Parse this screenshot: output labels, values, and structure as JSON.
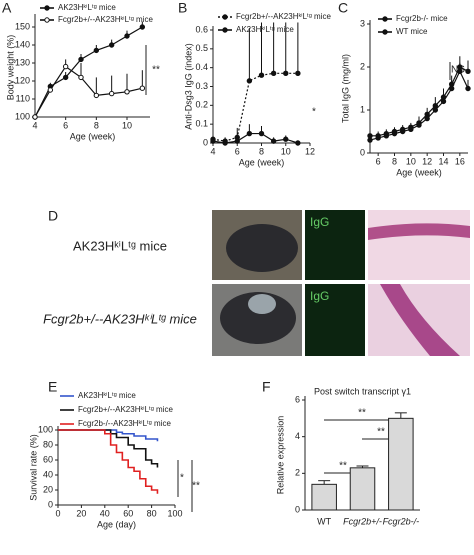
{
  "panel_labels": [
    "A",
    "B",
    "C",
    "D",
    "E",
    "F"
  ],
  "figure_d": {
    "rows": [
      "AK23HᵏⁱLᵗᵍ mice",
      "Fcgr2b+/--AK23HᵏⁱLᵗᵍ mice"
    ],
    "stain": "IgG"
  },
  "chart_data": [
    {
      "type": "line",
      "x": [
        4,
        5,
        6,
        7,
        8,
        9,
        10,
        11
      ],
      "xlim": [
        4,
        11.5
      ],
      "xticks": [
        4,
        6,
        8,
        10
      ],
      "ylim": [
        100,
        155
      ],
      "yticks": [
        100,
        110,
        120,
        130,
        140,
        150
      ],
      "xlabel": "Age (week)",
      "ylabel": "Body weight (%)",
      "annotations": [
        "**"
      ],
      "series": [
        {
          "name": "AK23HᵏⁱLᵗᵍ mice",
          "color": "#111",
          "marker": "filled",
          "dash": false,
          "values": [
            100,
            117,
            122,
            132,
            137,
            140,
            145,
            150
          ],
          "errors": [
            1,
            2,
            3,
            3,
            3,
            3,
            3,
            3
          ]
        },
        {
          "name": "Fcgr2b+/--AK23HᵏⁱLᵗᵍ mice",
          "color": "#111",
          "marker": "open",
          "dash": false,
          "values": [
            100,
            115,
            128,
            122,
            112,
            113,
            114,
            116
          ],
          "errors": [
            1,
            2,
            4,
            8,
            10,
            10,
            10,
            10
          ]
        }
      ]
    },
    {
      "type": "line",
      "x": [
        4,
        5,
        6,
        7,
        8,
        9,
        10,
        11
      ],
      "xlim": [
        4,
        12
      ],
      "xticks": [
        4,
        6,
        8,
        10,
        12
      ],
      "ylim": [
        0,
        0.6
      ],
      "yticks": [
        0,
        0.1,
        0.2,
        0.3,
        0.4,
        0.5,
        0.6
      ],
      "xlabel": "Age (week)",
      "ylabel": "Anti-Dsg3 IgG (index)",
      "annotations": [
        "*"
      ],
      "series": [
        {
          "name": "Fcgr2b+/--AK23HᵏⁱLᵗᵍ mice",
          "color": "#111",
          "marker": "filled",
          "dash": true,
          "values": [
            0.02,
            0.01,
            0.03,
            0.33,
            0.36,
            0.37,
            0.37,
            0.37
          ],
          "errors": [
            0.02,
            0.02,
            0.05,
            0.28,
            0.28,
            0.27,
            0.27,
            0.27
          ]
        },
        {
          "name": "AK23HᵏⁱLᵗᵍ mice",
          "color": "#111",
          "marker": "filled",
          "dash": false,
          "values": [
            0.01,
            0,
            0.01,
            0.05,
            0.05,
            0.01,
            0.02,
            0
          ],
          "errors": [
            0.01,
            0.01,
            0.02,
            0.05,
            0.04,
            0.02,
            0.02,
            0.01
          ]
        }
      ]
    },
    {
      "type": "line",
      "x": [
        5,
        6,
        7,
        8,
        9,
        10,
        11,
        12,
        13,
        14,
        15,
        16,
        17
      ],
      "xlim": [
        5,
        17
      ],
      "xticks": [
        6,
        8,
        10,
        12,
        14,
        16
      ],
      "ylim": [
        0,
        3
      ],
      "yticks": [
        0,
        1,
        2,
        3
      ],
      "xlabel": "Age (week)",
      "ylabel": "Total IgG (mg/ml)",
      "annotations": [
        "NS"
      ],
      "series": [
        {
          "name": "Fcgr2b-/- mice",
          "color": "#111",
          "marker": "filled",
          "dash": false,
          "values": [
            0.4,
            0.4,
            0.45,
            0.5,
            0.55,
            0.6,
            0.7,
            0.9,
            1.1,
            1.3,
            1.6,
            2.0,
            1.9
          ],
          "errors": [
            0.1,
            0.1,
            0.1,
            0.1,
            0.1,
            0.1,
            0.15,
            0.15,
            0.2,
            0.2,
            0.2,
            0.25,
            0.25
          ]
        },
        {
          "name": "WT mice",
          "color": "#111",
          "marker": "filled",
          "dash": false,
          "values": [
            0.3,
            0.35,
            0.4,
            0.45,
            0.5,
            0.55,
            0.65,
            0.8,
            1.0,
            1.2,
            1.5,
            1.9,
            1.5
          ],
          "errors": [
            0.05,
            0.05,
            0.1,
            0.1,
            0.1,
            0.1,
            0.1,
            0.15,
            0.15,
            0.2,
            0.2,
            0.2,
            0.2
          ]
        }
      ]
    },
    {
      "type": "step",
      "xlim": [
        0,
        100
      ],
      "xticks": [
        0,
        20,
        40,
        60,
        80,
        100
      ],
      "ylim": [
        0,
        100
      ],
      "yticks": [
        0,
        20,
        40,
        60,
        80,
        100
      ],
      "xlabel": "Age (day)",
      "ylabel": "Survival rate (%)",
      "annotations": [
        "*",
        "**"
      ],
      "series": [
        {
          "name": "AK23HᵏⁱLᵗᵍ mice",
          "color": "#3355cc",
          "x": [
            0,
            40,
            50,
            55,
            65,
            75,
            85
          ],
          "values": [
            100,
            100,
            97,
            95,
            92,
            88,
            85
          ]
        },
        {
          "name": "Fcgr2b+/--AK23HᵏⁱLᵗᵍ mice",
          "color": "#111111",
          "x": [
            0,
            40,
            45,
            50,
            60,
            65,
            75,
            80,
            85
          ],
          "values": [
            100,
            100,
            95,
            90,
            80,
            75,
            60,
            55,
            50
          ]
        },
        {
          "name": "Fcgr2b-/--AK23HᵏⁱLᵗᵍ mice",
          "color": "#e02020",
          "x": [
            0,
            40,
            45,
            50,
            55,
            60,
            65,
            70,
            75,
            80,
            85
          ],
          "values": [
            100,
            95,
            80,
            70,
            60,
            50,
            45,
            35,
            25,
            20,
            15
          ]
        }
      ]
    },
    {
      "type": "bar",
      "title": "Post switch transcript γ1",
      "categories": [
        "WT",
        "Fcgr2b+/-",
        "Fcgr2b-/-"
      ],
      "values": [
        1.4,
        2.3,
        5.0
      ],
      "errors": [
        0.2,
        0.1,
        0.3
      ],
      "color": "#d9d9d9",
      "ylim": [
        0,
        6
      ],
      "yticks": [
        0,
        2,
        4,
        6
      ],
      "ylabel": "Relative expression",
      "annotations": [
        "**",
        "**",
        "**"
      ]
    }
  ]
}
